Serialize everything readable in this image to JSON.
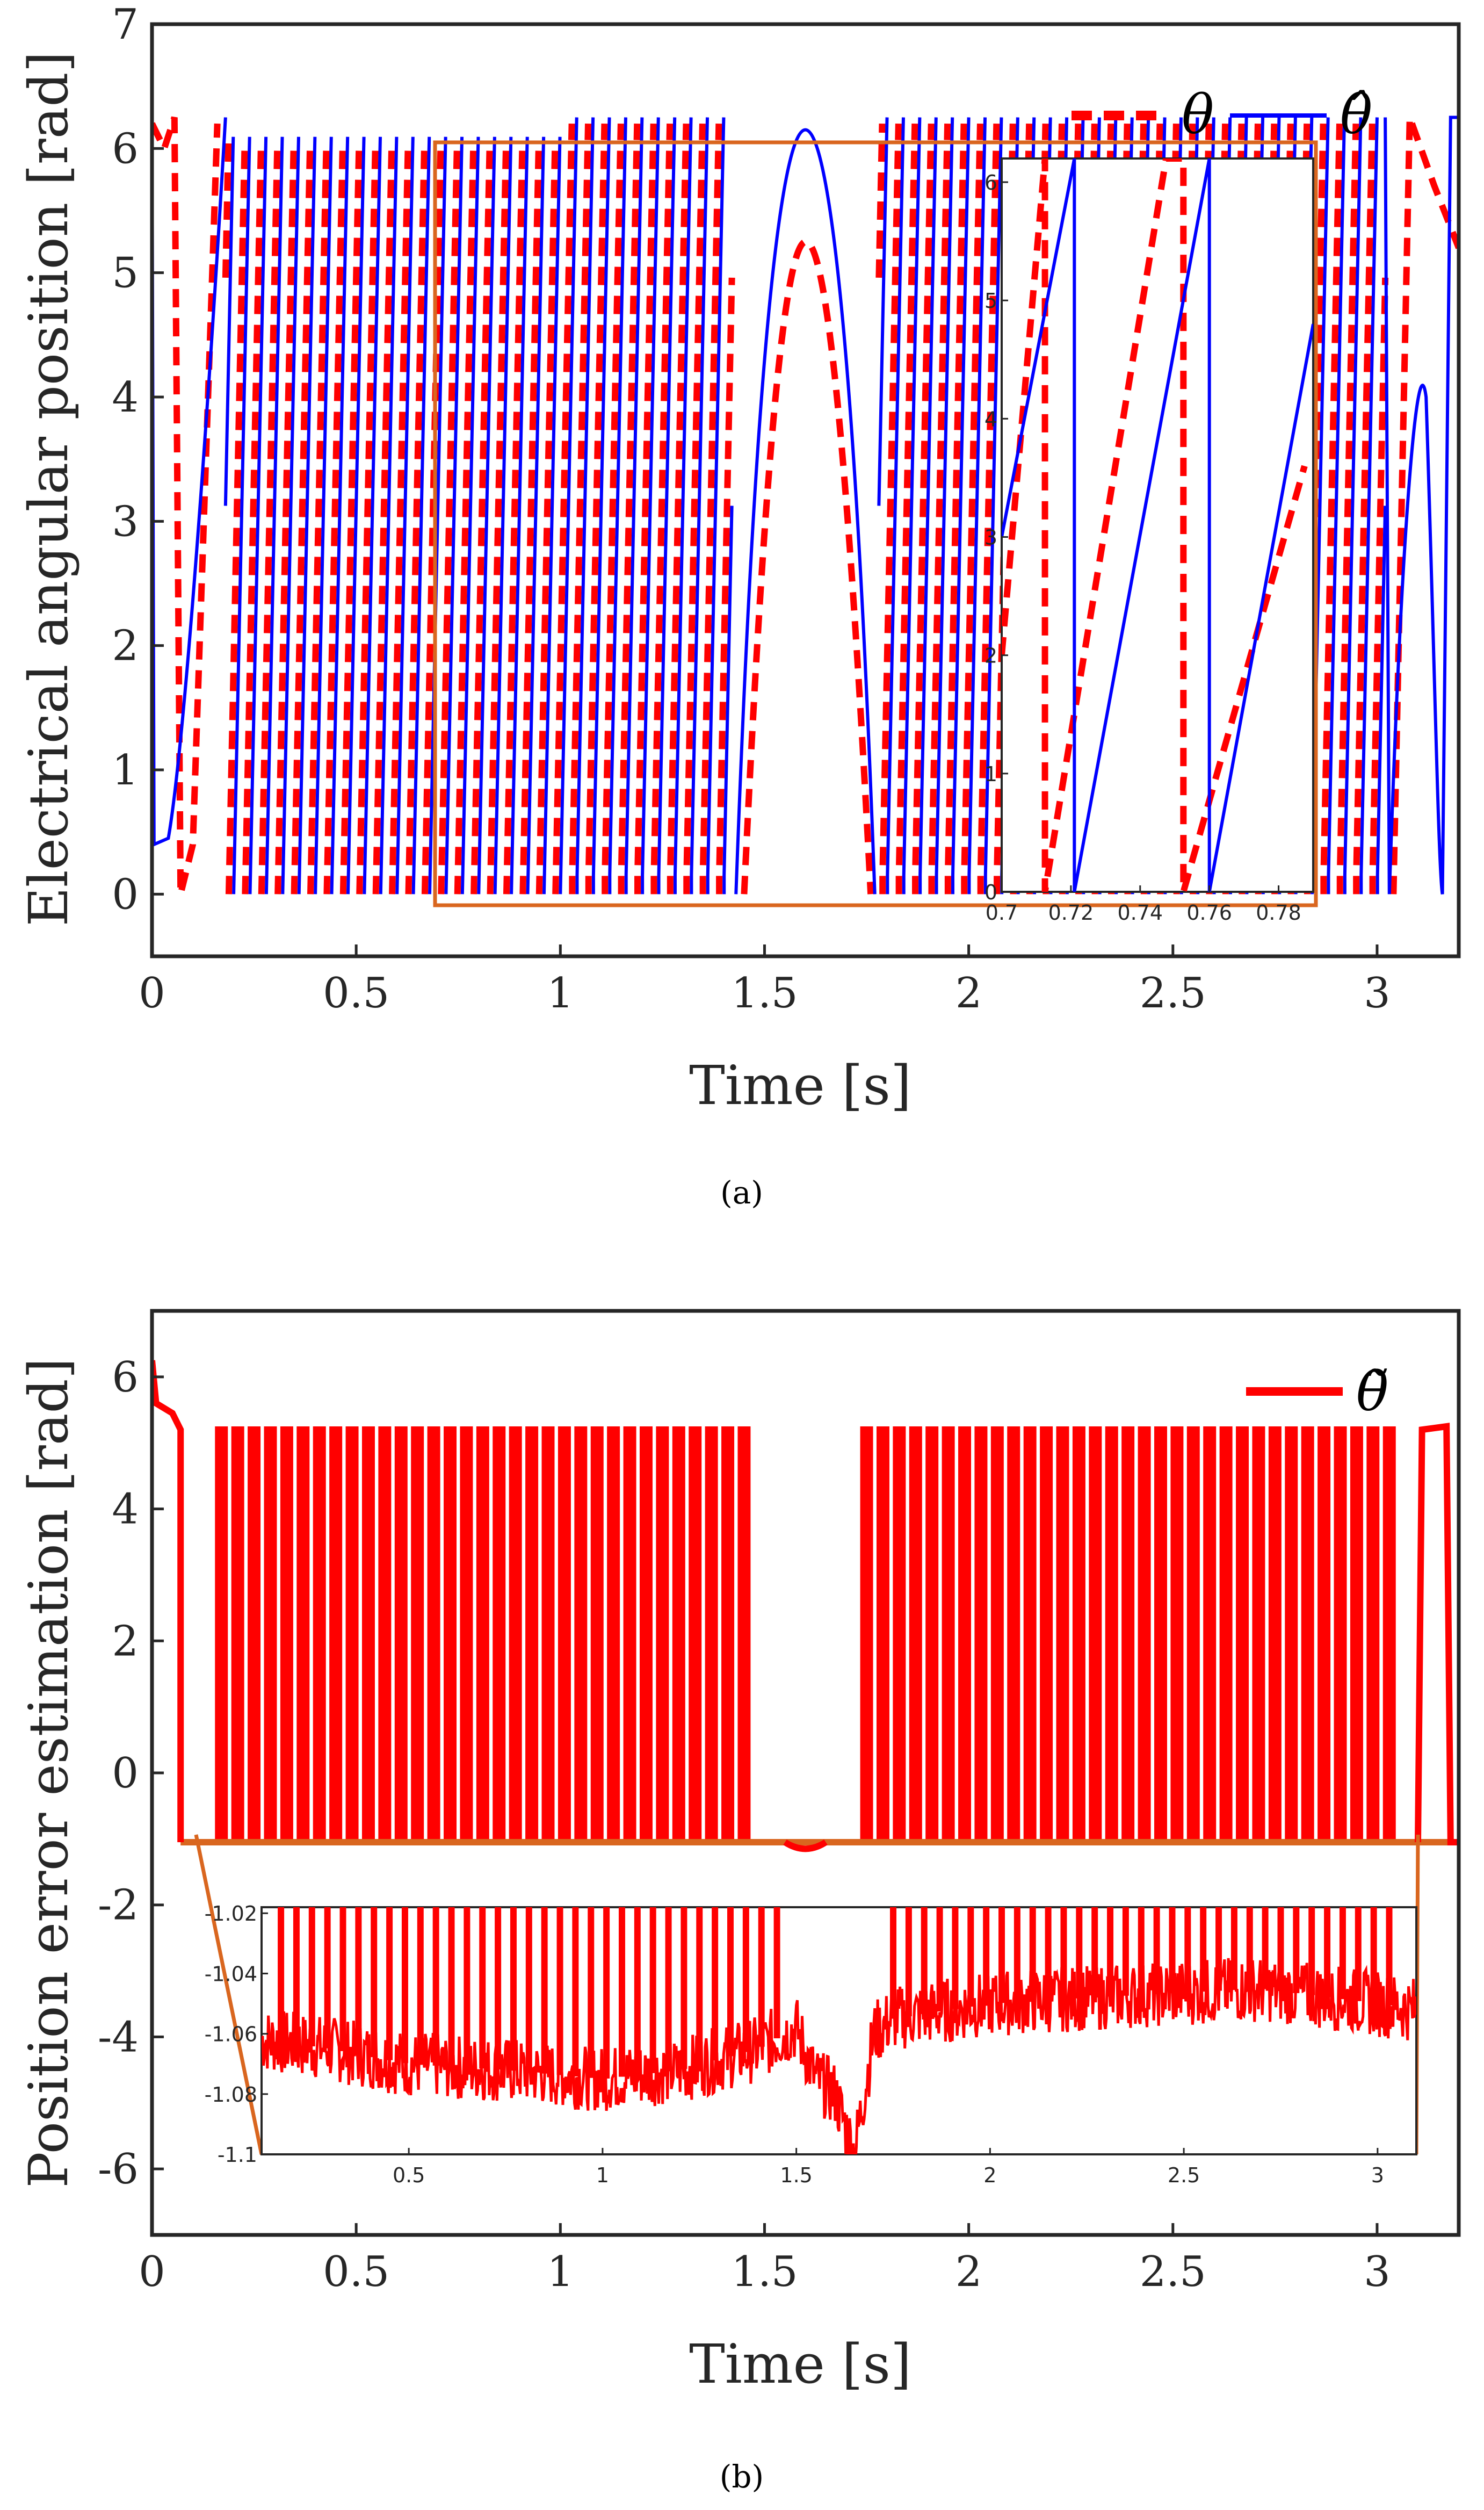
{
  "colors": {
    "theta": "#ff0000",
    "theta_hat": "#0000ff",
    "error": "#ff0000",
    "zoom_box": "#d9661f",
    "axis": "#262626"
  },
  "chart_data": [
    {
      "id": "a",
      "type": "line",
      "caption": "(a)",
      "xlabel": "Time [s]",
      "ylabel": "Electrical angular position [rad]",
      "xlim": [
        0,
        3.2
      ],
      "ylim": [
        -0.5,
        7
      ],
      "xticks": [
        "0",
        "0.5",
        "1",
        "1.5",
        "2",
        "2.5",
        "3"
      ],
      "yticks": [
        "0",
        "1",
        "2",
        "3",
        "4",
        "5",
        "6",
        "7"
      ],
      "legend_position": "top-right",
      "series": [
        {
          "name": "θ",
          "style": "dashed",
          "color": "#ff0000",
          "x": [
            0,
            0.02,
            0.05,
            0.09,
            0.13,
            0.18,
            0.24,
            0.3,
            0.4,
            0.5,
            0.7,
            0.9,
            1.1,
            1.3,
            1.45,
            1.5,
            1.55,
            1.6,
            1.65,
            1.7,
            1.76,
            1.85,
            2.0,
            2.3,
            2.6,
            2.9,
            3.0,
            3.05,
            3.1,
            3.15,
            3.2
          ],
          "y": [
            6.2,
            6.0,
            6.25,
            0.0,
            2.0,
            6.2,
            6.2,
            6.2,
            6.2,
            6.2,
            6.2,
            6.2,
            6.2,
            6.2,
            6.2,
            2.5,
            4.6,
            5.18,
            4.6,
            2.5,
            0.0,
            6.2,
            6.2,
            6.2,
            6.2,
            6.2,
            6.2,
            0.0,
            6.25,
            5.5,
            5.2
          ],
          "note_period_s": 0.04
        },
        {
          "name": "θ̂",
          "style": "solid",
          "color": "#0000ff",
          "x": [
            0,
            0.02,
            0.05,
            0.1,
            0.15,
            0.18,
            0.25,
            0.4,
            0.7,
            1.0,
            1.3,
            1.43,
            1.5,
            1.55,
            1.6,
            1.65,
            1.7,
            1.76,
            2.0,
            2.5,
            3.0,
            3.03,
            3.08,
            3.12,
            3.16,
            3.2
          ],
          "y": [
            6.2,
            0.4,
            0.4,
            2.5,
            5.5,
            6.25,
            6.25,
            6.25,
            6.25,
            6.25,
            6.25,
            6.25,
            3.5,
            5.7,
            6.25,
            5.7,
            3.5,
            0.0,
            6.25,
            6.25,
            6.25,
            0.0,
            3.0,
            6.0,
            6.25,
            6.25
          ],
          "note_period_s": 0.04
        }
      ],
      "inset": {
        "zoom_xlim": [
          0.7,
          0.79
        ],
        "zoom_ylim": [
          0,
          6.2
        ],
        "xticks": [
          "0.7",
          "0.72",
          "0.74",
          "0.76",
          "0.78"
        ],
        "yticks": [
          "0",
          "1",
          "2",
          "3",
          "4",
          "5",
          "6"
        ],
        "theta_x": [
          0.7,
          0.7125,
          0.7125,
          0.7475,
          0.7525,
          0.7525,
          0.7875
        ],
        "theta_y": [
          2.0,
          6.2,
          0.0,
          6.2,
          6.2,
          0.0,
          3.6
        ],
        "theta_hat_x": [
          0.7,
          0.721,
          0.721,
          0.721,
          0.76,
          0.76,
          0.76,
          0.79
        ],
        "theta_hat_y": [
          3.0,
          6.2,
          6.2,
          0.0,
          6.2,
          6.2,
          0.0,
          4.8
        ]
      }
    },
    {
      "id": "b",
      "type": "line",
      "caption": "(b)",
      "xlabel": "Time [s]",
      "ylabel": "Position error estimation [rad]",
      "xlim": [
        0,
        3.2
      ],
      "ylim": [
        -7,
        7
      ],
      "xticks": [
        "0",
        "0.5",
        "1",
        "1.5",
        "2",
        "2.5",
        "3"
      ],
      "yticks": [
        "6",
        "4",
        "2",
        "0",
        "-2",
        "-4",
        "-6"
      ],
      "legend_position": "top-right",
      "series": [
        {
          "name": "θ̃",
          "style": "solid",
          "color": "#ff0000",
          "x": [
            0,
            0.01,
            0.05,
            0.07,
            0.07,
            0.1,
            0.15,
            0.17,
            1.45,
            1.5,
            1.6,
            1.72,
            1.76,
            3.0,
            3.05,
            3.1,
            3.1,
            3.15,
            3.18,
            3.18,
            3.2
          ],
          "y": [
            6.25,
            5.6,
            5.4,
            5.2,
            -1.0,
            -1.05,
            -1.05,
            5.25,
            5.25,
            -1.05,
            -1.1,
            -1.05,
            5.25,
            5.25,
            -1.05,
            -1.05,
            5.2,
            5.25,
            5.2,
            -1.05,
            -1.05
          ],
          "spike_high": 5.25,
          "spike_low": -1.05
        }
      ],
      "inset": {
        "zoom_xlim": [
          0.12,
          3.1
        ],
        "zoom_ylim": [
          -1.1,
          -1.018
        ],
        "xticks": [
          "0.5",
          "1",
          "1.5",
          "2",
          "2.5",
          "3"
        ],
        "yticks": [
          "-1.02",
          "-1.04",
          "-1.06",
          "-1.08",
          "-1.1"
        ],
        "x": [
          0.12,
          0.3,
          0.5,
          0.75,
          1.0,
          1.2,
          1.4,
          1.5,
          1.55,
          1.6,
          1.65,
          1.7,
          1.75,
          2.0,
          2.4,
          2.7,
          3.0,
          3.1
        ],
        "y": [
          -1.062,
          -1.065,
          -1.07,
          -1.072,
          -1.075,
          -1.072,
          -1.065,
          -1.058,
          -1.075,
          -1.08,
          -1.1,
          -1.06,
          -1.055,
          -1.05,
          -1.047,
          -1.045,
          -1.05,
          -1.052
        ]
      }
    }
  ]
}
